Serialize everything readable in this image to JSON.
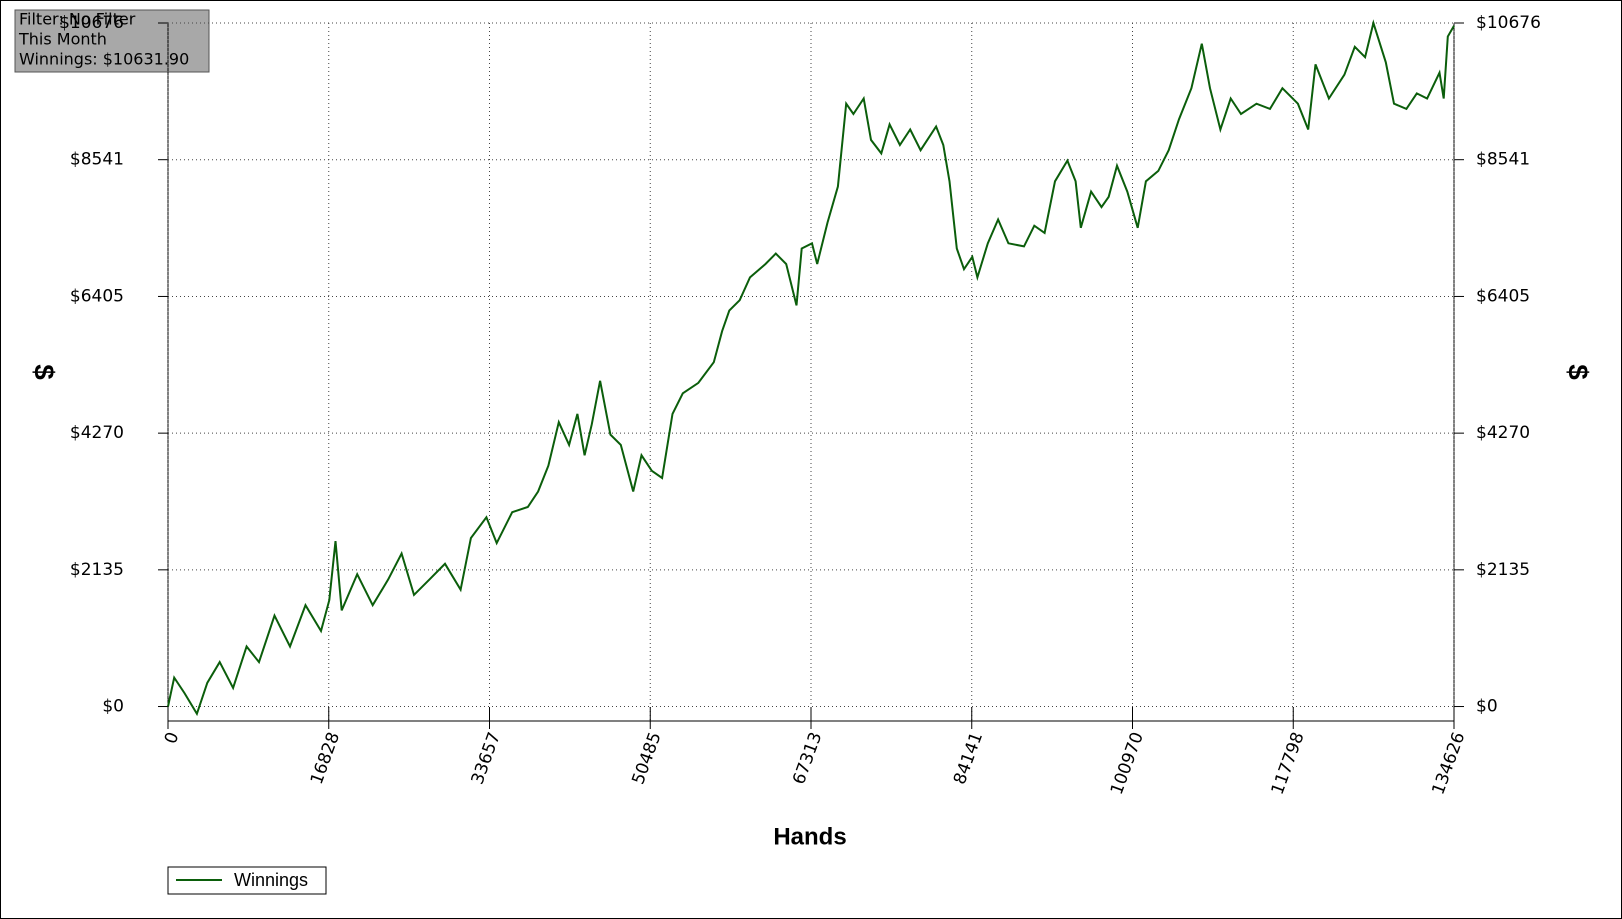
{
  "chart_data": {
    "type": "line",
    "annotations": [
      "Filter: No Filter",
      "This Month",
      "Winnings: $10631.90"
    ],
    "xlabel": "Hands",
    "ylabel": "$",
    "x": [
      0,
      649,
      1732,
      3030,
      4112,
      5411,
      6818,
      8225,
      9523,
      11147,
      12770,
      14393,
      16017,
      16882,
      17532,
      18181,
      19804,
      21428,
      23051,
      24458,
      25756,
      27380,
      29003,
      30626,
      31708,
      33332,
      34414,
      36037,
      37661,
      38743,
      39825,
      40907,
      41989,
      42855,
      43613,
      44370,
      45236,
      46318,
      47400,
      48700,
      49565,
      50647,
      51729,
      52810,
      53892,
      55517,
      57140,
      58006,
      58763,
      59846,
      60928,
      62551,
      63633,
      64716,
      65798,
      66339,
      67421,
      67962,
      69044,
      70127,
      70993,
      71750,
      72832,
      73590,
      74672,
      75537,
      76620,
      77702,
      78784,
      80407,
      81165,
      81814,
      82572,
      83329,
      84195,
      84736,
      85818,
      86901,
      87983,
      89606,
      90688,
      91771,
      92853,
      94151,
      95017,
      95558,
      96640,
      97723,
      98480,
      99346,
      100428,
      101510,
      102376,
      103675,
      104757,
      105839,
      107138,
      108220,
      109086,
      110168,
      111250,
      112332,
      113955,
      115362,
      116661,
      118284,
      119366,
      120124,
      121531,
      123154,
      124236,
      125319,
      126185,
      127483,
      128349,
      129648,
      130730,
      131812,
      133111,
      133544,
      133977,
      134626
    ],
    "series": [
      {
        "name": "Winnings",
        "color": "#0b5e0b",
        "values": [
          0,
          452,
          210,
          -113,
          371,
          694,
          291,
          937,
          694,
          1421,
          937,
          1583,
          1179,
          1663,
          2584,
          1502,
          2067,
          1583,
          1986,
          2390,
          1744,
          1986,
          2229,
          1825,
          2632,
          2955,
          2552,
          3036,
          3117,
          3359,
          3763,
          4441,
          4086,
          4570,
          3924,
          4409,
          5087,
          4247,
          4086,
          3359,
          3924,
          3682,
          3569,
          4570,
          4893,
          5055,
          5378,
          5862,
          6185,
          6347,
          6702,
          6912,
          7074,
          6912,
          6266,
          7154,
          7235,
          6912,
          7558,
          8123,
          9415,
          9254,
          9496,
          8850,
          8640,
          9092,
          8770,
          9012,
          8689,
          9060,
          8770,
          8204,
          7154,
          6831,
          7025,
          6702,
          7235,
          7607,
          7235,
          7187,
          7510,
          7397,
          8204,
          8527,
          8204,
          7477,
          8043,
          7800,
          7962,
          8447,
          8043,
          7477,
          8204,
          8366,
          8689,
          9173,
          9658,
          10352,
          9658,
          9012,
          9496,
          9254,
          9415,
          9335,
          9658,
          9415,
          9012,
          10029,
          9496,
          9868,
          10304,
          10142,
          10676,
          10062,
          9415,
          9335,
          9577,
          9496,
          9900,
          9496,
          10465,
          10631.9
        ]
      }
    ],
    "xlim": [
      0,
      134626
    ],
    "xticks": [
      0,
      16828,
      33657,
      50485,
      67313,
      84141,
      100970,
      117798,
      134626
    ],
    "ylim": [
      -226,
      10676
    ],
    "yticks": [
      {
        "value": 0,
        "label": "$0"
      },
      {
        "value": 2135,
        "label": "$2135"
      },
      {
        "value": 4270,
        "label": "$4270"
      },
      {
        "value": 6405,
        "label": "$6405"
      },
      {
        "value": 8541,
        "label": "$8541"
      },
      {
        "value": 10676,
        "label": "$10676"
      }
    ],
    "grid": true
  }
}
